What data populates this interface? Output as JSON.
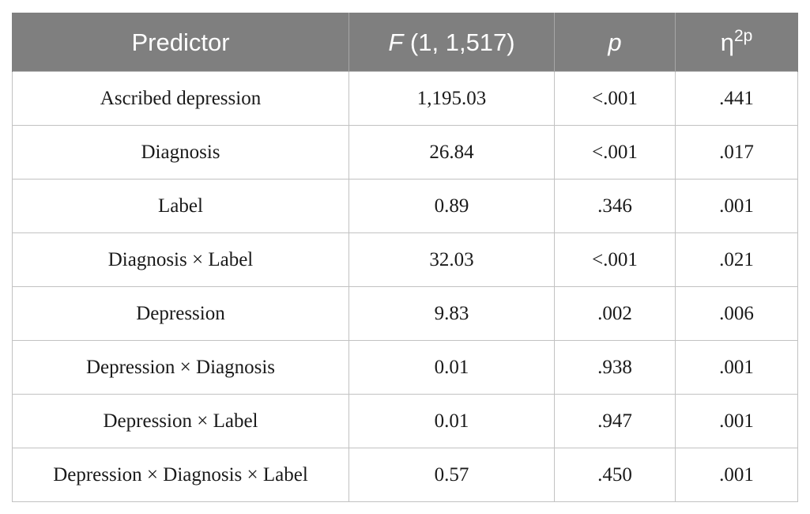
{
  "table": {
    "headers": {
      "predictor": "Predictor",
      "f_symbol": "F",
      "f_df": " (1, 1,517)",
      "p": "p",
      "eta": "η",
      "eta_sup": "2p"
    },
    "rows": [
      {
        "predictor": "Ascribed depression",
        "f": "1,195.03",
        "p": "<.001",
        "eta": ".441"
      },
      {
        "predictor": "Diagnosis",
        "f": "26.84",
        "p": "<.001",
        "eta": ".017"
      },
      {
        "predictor": "Label",
        "f": "0.89",
        "p": ".346",
        "eta": ".001"
      },
      {
        "predictor": "Diagnosis × Label",
        "f": "32.03",
        "p": "<.001",
        "eta": ".021"
      },
      {
        "predictor": "Depression",
        "f": "9.83",
        "p": ".002",
        "eta": ".006"
      },
      {
        "predictor": "Depression × Diagnosis",
        "f": "0.01",
        "p": ".938",
        "eta": ".001"
      },
      {
        "predictor": "Depression × Label",
        "f": "0.01",
        "p": ".947",
        "eta": ".001"
      },
      {
        "predictor": "Depression × Diagnosis × Label",
        "f": "0.57",
        "p": ".450",
        "eta": ".001"
      }
    ],
    "colors": {
      "header_bg": "#7f7f7f",
      "header_text": "#ffffff",
      "grid": "#c2c2c2"
    }
  }
}
